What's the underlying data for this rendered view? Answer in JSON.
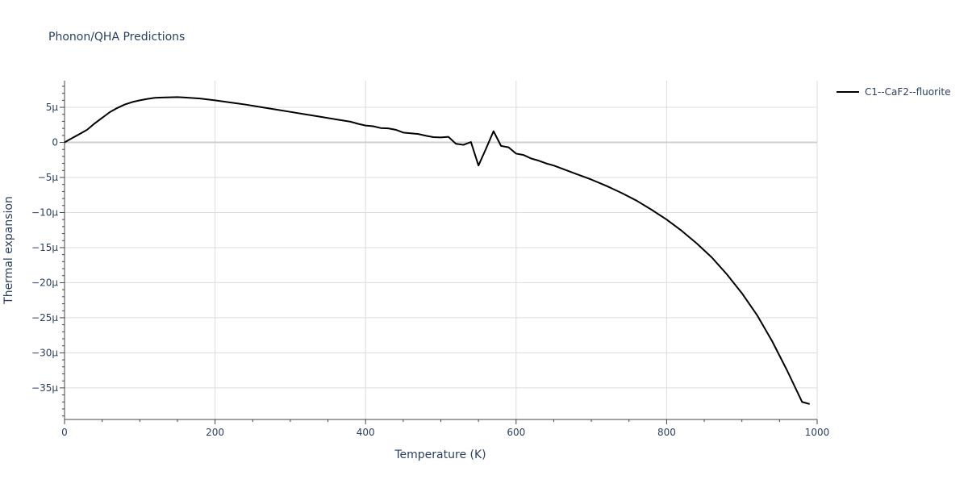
{
  "chart_data": {
    "type": "line",
    "title": "Phonon/QHA Predictions",
    "xlabel": "Temperature (K)",
    "ylabel": "Thermal expansion",
    "xlim": [
      0,
      1000
    ],
    "ylim": [
      -3.95e-05,
      8.8e-06
    ],
    "xticks": [
      0,
      200,
      400,
      600,
      800,
      1000
    ],
    "xtick_labels": [
      "0",
      "200",
      "400",
      "600",
      "800",
      "1000"
    ],
    "yticks": [
      5e-06,
      0,
      -5e-06,
      -1e-05,
      -1.5e-05,
      -2e-05,
      -2.5e-05,
      -3e-05,
      -3.5e-05
    ],
    "ytick_labels": [
      "5μ",
      "0",
      "−5μ",
      "−10μ",
      "−15μ",
      "−20μ",
      "−25μ",
      "−30μ",
      "−35μ"
    ],
    "grid": true,
    "legend_position": "top-right",
    "series": [
      {
        "name": "C1--CaF2--fluorite",
        "color": "#000000",
        "x": [
          0,
          10,
          20,
          30,
          40,
          50,
          60,
          70,
          80,
          90,
          100,
          110,
          120,
          130,
          140,
          150,
          160,
          180,
          200,
          220,
          240,
          260,
          280,
          300,
          320,
          340,
          360,
          380,
          390,
          400,
          410,
          420,
          430,
          440,
          450,
          460,
          470,
          480,
          490,
          500,
          510,
          520,
          530,
          540,
          550,
          560,
          570,
          580,
          590,
          600,
          610,
          620,
          630,
          640,
          650,
          660,
          670,
          680,
          700,
          720,
          740,
          760,
          780,
          800,
          820,
          840,
          860,
          880,
          900,
          920,
          940,
          960,
          980,
          990
        ],
        "y": [
          0,
          6e-07,
          1.2e-06,
          1.8e-06,
          2.7e-06,
          3.5e-06,
          4.3e-06,
          4.9e-06,
          5.4e-06,
          5.75e-06,
          6e-06,
          6.2e-06,
          6.35e-06,
          6.4e-06,
          6.43e-06,
          6.45e-06,
          6.4e-06,
          6.25e-06,
          6e-06,
          5.7e-06,
          5.4e-06,
          5.05e-06,
          4.7e-06,
          4.35e-06,
          4e-06,
          3.65e-06,
          3.3e-06,
          2.95e-06,
          2.65e-06,
          2.4e-06,
          2.3e-06,
          2.05e-06,
          2e-06,
          1.8e-06,
          1.4e-06,
          1.3e-06,
          1.2e-06,
          9.5e-07,
          7.5e-07,
          7e-07,
          8e-07,
          -2e-07,
          -3.5e-07,
          5e-08,
          -3.3e-06,
          -9e-07,
          1.6e-06,
          -5e-07,
          -7e-07,
          -1.6e-06,
          -1.8e-06,
          -2.3e-06,
          -2.6e-06,
          -3e-06,
          -3.3e-06,
          -3.7e-06,
          -4.1e-06,
          -4.5e-06,
          -5.3e-06,
          -6.2e-06,
          -7.2e-06,
          -8.3e-06,
          -9.6e-06,
          -1.1e-05,
          -1.26e-05,
          -1.44e-05,
          -1.64e-05,
          -1.88e-05,
          -2.15e-05,
          -2.46e-05,
          -2.83e-05,
          -3.25e-05,
          -3.7e-05,
          -3.73e-05
        ]
      }
    ]
  }
}
